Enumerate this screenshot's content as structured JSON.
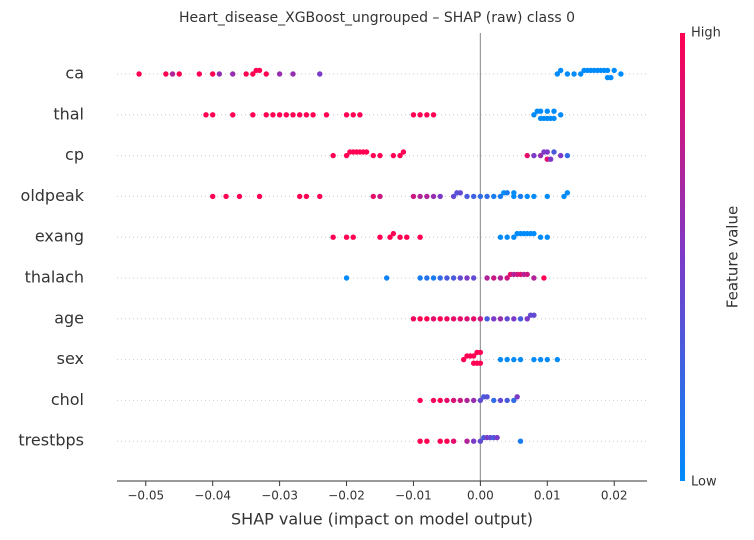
{
  "chart_data": {
    "type": "beeswarm",
    "title": "Heart_disease_XGBoost_ungrouped – SHAP (raw) class 0",
    "x_label": "SHAP value (impact on model output)",
    "colorbar_label": "Feature value",
    "colorbar_high": "High",
    "colorbar_low": "Low",
    "xlim": [
      -0.0543,
      0.0249
    ],
    "xticks": [
      {
        "value": -0.05,
        "label": "−0.05"
      },
      {
        "value": -0.04,
        "label": "−0.04"
      },
      {
        "value": -0.03,
        "label": "−0.03"
      },
      {
        "value": -0.02,
        "label": "−0.02"
      },
      {
        "value": -0.01,
        "label": "−0.01"
      },
      {
        "value": 0,
        "label": "0.00"
      },
      {
        "value": 0.01,
        "label": "0.01"
      },
      {
        "value": 0.02,
        "label": "0.02"
      }
    ],
    "series": [
      {
        "name": "ca",
        "values": [
          -0.051,
          -0.047,
          -0.046,
          -0.045,
          -0.042,
          -0.04,
          -0.039,
          -0.037,
          -0.035,
          -0.034,
          -0.0335,
          -0.033,
          -0.032,
          -0.03,
          -0.028,
          -0.024,
          0.0115,
          0.012,
          0.013,
          0.014,
          0.015,
          0.0155,
          0.016,
          0.0165,
          0.017,
          0.0175,
          0.018,
          0.0185,
          0.019,
          0.019,
          0.0195,
          0.02,
          0.021
        ],
        "feature_values": [
          1,
          1,
          0.7,
          1,
          1,
          1,
          0.6,
          0.6,
          1,
          1,
          1,
          1,
          1,
          0.6,
          0.6,
          0.5,
          0,
          0,
          0,
          0,
          0,
          0,
          0,
          0,
          0,
          0,
          0,
          0,
          0,
          0,
          0,
          0,
          0
        ]
      },
      {
        "name": "thal",
        "values": [
          -0.041,
          -0.04,
          -0.037,
          -0.034,
          -0.032,
          -0.031,
          -0.03,
          -0.029,
          -0.028,
          -0.027,
          -0.026,
          -0.025,
          -0.023,
          -0.02,
          -0.019,
          -0.018,
          -0.01,
          -0.009,
          -0.008,
          -0.007,
          0.008,
          0.0085,
          0.009,
          0.009,
          0.0095,
          0.01,
          0.01,
          0.0105,
          0.011,
          0.011,
          0.012
        ],
        "feature_values": [
          1,
          1,
          1,
          1,
          1,
          1,
          1,
          1,
          1,
          1,
          1,
          1,
          1,
          1,
          1,
          1,
          1,
          1,
          1,
          1,
          0,
          0,
          0,
          0,
          0,
          0,
          0,
          0,
          0,
          0,
          0
        ]
      },
      {
        "name": "cp",
        "values": [
          -0.022,
          -0.02,
          -0.0195,
          -0.019,
          -0.0185,
          -0.018,
          -0.0175,
          -0.017,
          -0.016,
          -0.015,
          -0.013,
          -0.012,
          -0.0115,
          0.007,
          0.008,
          0.009,
          0.0095,
          0.01,
          0.01,
          0.0105,
          0.011,
          0.012,
          0.013
        ],
        "feature_values": [
          1,
          1,
          1,
          1,
          1,
          1,
          1,
          1,
          1,
          1,
          1,
          1,
          1,
          0.9,
          0.5,
          0.6,
          0.5,
          0.5,
          0.9,
          0.5,
          0.3,
          0.5,
          0.2
        ]
      },
      {
        "name": "oldpeak",
        "values": [
          -0.04,
          -0.038,
          -0.036,
          -0.033,
          -0.027,
          -0.026,
          -0.024,
          -0.016,
          -0.015,
          -0.01,
          -0.009,
          -0.008,
          -0.007,
          -0.006,
          -0.004,
          -0.0035,
          -0.003,
          -0.002,
          -0.001,
          0.0,
          0.001,
          0.002,
          0.003,
          0.0035,
          0.004,
          0.005,
          0.005,
          0.006,
          0.007,
          0.008,
          0.01,
          0.0125,
          0.013
        ],
        "feature_values": [
          1,
          1,
          1,
          1,
          1,
          1,
          1,
          0.9,
          0.8,
          0.8,
          0.7,
          0.7,
          0.6,
          0.5,
          0.4,
          0.35,
          0.4,
          0.3,
          0.25,
          0.2,
          0.2,
          0.1,
          0.1,
          0,
          0.1,
          0,
          0,
          0.1,
          0,
          0,
          0,
          0,
          0
        ]
      },
      {
        "name": "exang",
        "values": [
          -0.022,
          -0.02,
          -0.019,
          -0.015,
          -0.0135,
          -0.013,
          -0.012,
          -0.011,
          -0.009,
          0.003,
          0.004,
          0.005,
          0.0055,
          0.006,
          0.0065,
          0.007,
          0.0075,
          0.008,
          0.009,
          0.01
        ],
        "feature_values": [
          1,
          1,
          1,
          1,
          1,
          1,
          1,
          1,
          1,
          0,
          0,
          0,
          0,
          0,
          0,
          0,
          0,
          0,
          0,
          0
        ]
      },
      {
        "name": "thalach",
        "values": [
          -0.02,
          -0.014,
          -0.009,
          -0.008,
          -0.007,
          -0.006,
          -0.005,
          -0.004,
          -0.003,
          -0.002,
          -0.001,
          0.001,
          0.002,
          0.003,
          0.004,
          0.0045,
          0.005,
          0.0055,
          0.006,
          0.0065,
          0.007,
          0.008,
          0.0095
        ],
        "feature_values": [
          0,
          0.05,
          0.1,
          0.15,
          0.1,
          0.2,
          0.3,
          0.3,
          0.4,
          0.5,
          0.4,
          0.7,
          0.8,
          0.7,
          0.8,
          0.9,
          0.7,
          0.8,
          0.9,
          0.7,
          0.8,
          0.7,
          1
        ]
      },
      {
        "name": "age",
        "values": [
          -0.01,
          -0.009,
          -0.008,
          -0.007,
          -0.006,
          -0.005,
          -0.004,
          -0.003,
          -0.002,
          -0.001,
          0.0,
          0.001,
          0.002,
          0.003,
          0.004,
          0.005,
          0.006,
          0.007,
          0.0075,
          0.008
        ],
        "feature_values": [
          0.95,
          1,
          1,
          0.9,
          1,
          0.95,
          0.9,
          0.9,
          0.85,
          0.9,
          0.8,
          0.3,
          0.5,
          0.6,
          0.4,
          0.5,
          0.3,
          0.5,
          0.4,
          0.4
        ]
      },
      {
        "name": "sex",
        "values": [
          -0.0025,
          -0.002,
          -0.0015,
          -0.001,
          -0.001,
          -0.0005,
          -0.0005,
          0.0,
          0.0,
          0.003,
          0.004,
          0.005,
          0.006,
          0.008,
          0.009,
          0.01,
          0.0115
        ],
        "feature_values": [
          1,
          1,
          1,
          1,
          1,
          1,
          1,
          1,
          1,
          0,
          0,
          0,
          0,
          0,
          0,
          0,
          0
        ]
      },
      {
        "name": "chol",
        "values": [
          -0.009,
          -0.007,
          -0.006,
          -0.005,
          -0.004,
          -0.003,
          -0.002,
          -0.001,
          0.0,
          0.0005,
          0.001,
          0.002,
          0.003,
          0.004,
          0.005,
          0.0055
        ],
        "feature_values": [
          1,
          0.95,
          1,
          0.9,
          0.85,
          0.8,
          0.7,
          0.6,
          0.4,
          0.3,
          0.35,
          0.2,
          0.4,
          0.3,
          0.2,
          0.5
        ]
      },
      {
        "name": "trestbps",
        "values": [
          -0.009,
          -0.008,
          -0.006,
          -0.005,
          -0.004,
          -0.002,
          -0.001,
          0.0,
          0.0005,
          0.001,
          0.0015,
          0.002,
          0.0025,
          0.006
        ],
        "feature_values": [
          1,
          1,
          1,
          1,
          0.9,
          0.7,
          0.5,
          0.4,
          0.3,
          0.5,
          0.4,
          0.3,
          0.5,
          0.1
        ]
      }
    ]
  }
}
